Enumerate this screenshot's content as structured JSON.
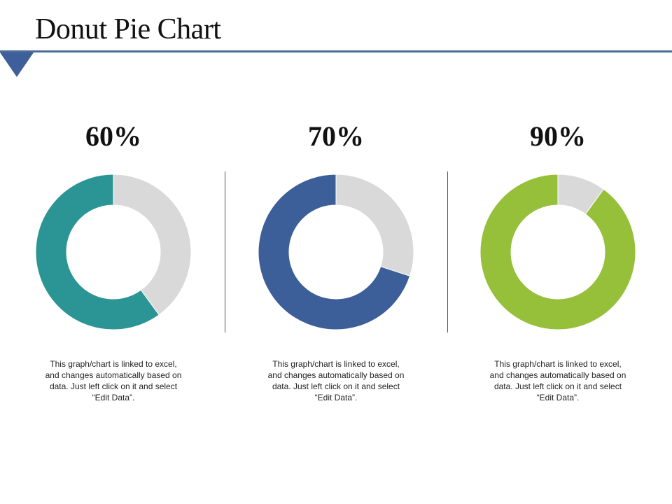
{
  "title": "Donut Pie Chart",
  "charts": [
    {
      "label": "60%",
      "caption": "This graph/chart is linked to excel, and changes automatically based on data. Just left click on it and select “Edit Data”."
    },
    {
      "label": "70%",
      "caption": "This graph/chart is linked to excel, and changes automatically based on data. Just left click on it and select “Edit Data”."
    },
    {
      "label": "90%",
      "caption": "This graph/chart is linked to excel, and changes automatically based on data. Just left click on it and select “Edit Data”."
    }
  ],
  "chart_data": [
    {
      "type": "pie",
      "donut": true,
      "values": [
        60,
        40
      ],
      "colors": [
        "#2b9494",
        "#d9d9d9"
      ]
    },
    {
      "type": "pie",
      "donut": true,
      "values": [
        70,
        30
      ],
      "colors": [
        "#3d5f99",
        "#d9d9d9"
      ]
    },
    {
      "type": "pie",
      "donut": true,
      "values": [
        90,
        10
      ],
      "colors": [
        "#96c03a",
        "#d9d9d9"
      ]
    }
  ],
  "colors": {
    "accent_rule": "#4a6b94",
    "accent_triangle": "#3e5f99"
  }
}
